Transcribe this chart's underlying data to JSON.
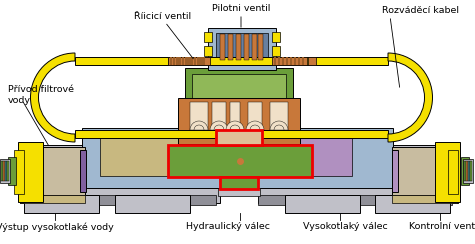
{
  "fig_width": 4.75,
  "fig_height": 2.44,
  "dpi": 100,
  "bg_color": "#ffffff",
  "labels": {
    "pilotni_ventil": "Pilotni ventil",
    "ridici_ventil": "Říicicí ventil",
    "rozvadeci_kabel": "Rozváděcí kabel",
    "privod_vody": "Přívod filtrové\nvody",
    "vystup_vody": "Výstup vysokotlaké vody",
    "hydraulicky_valec": "Hydraulický válec",
    "vysokotlaky_valec": "Vysokotlaký válec",
    "kontrolni_ventil": "Kontrolní ventil"
  },
  "colors": {
    "yellow": "#F5E000",
    "yellow2": "#E8D000",
    "orange_brown": "#C8783A",
    "brown_dark": "#9B5E28",
    "green": "#6B9E3A",
    "light_green": "#90B858",
    "blue_gray": "#8090A8",
    "light_blue": "#A0B8D0",
    "steel_blue": "#6880A0",
    "beige": "#C8BCA0",
    "light_beige": "#DED8C0",
    "sand": "#C8B880",
    "gray": "#A0A0A0",
    "light_gray": "#C0C0C8",
    "mid_gray": "#909098",
    "red": "#EE0000",
    "purple": "#8060A0",
    "light_purple": "#B090C0",
    "gold": "#D4A020",
    "peach": "#E0C098",
    "cream": "#F0E0C8",
    "white": "#FFFFFF",
    "black": "#000000",
    "dark_gray": "#505058",
    "olive_green": "#7A8840",
    "tan": "#C0A870",
    "pink_beige": "#D8C0A8",
    "mauve": "#C0A0B0",
    "teal": "#408080"
  }
}
